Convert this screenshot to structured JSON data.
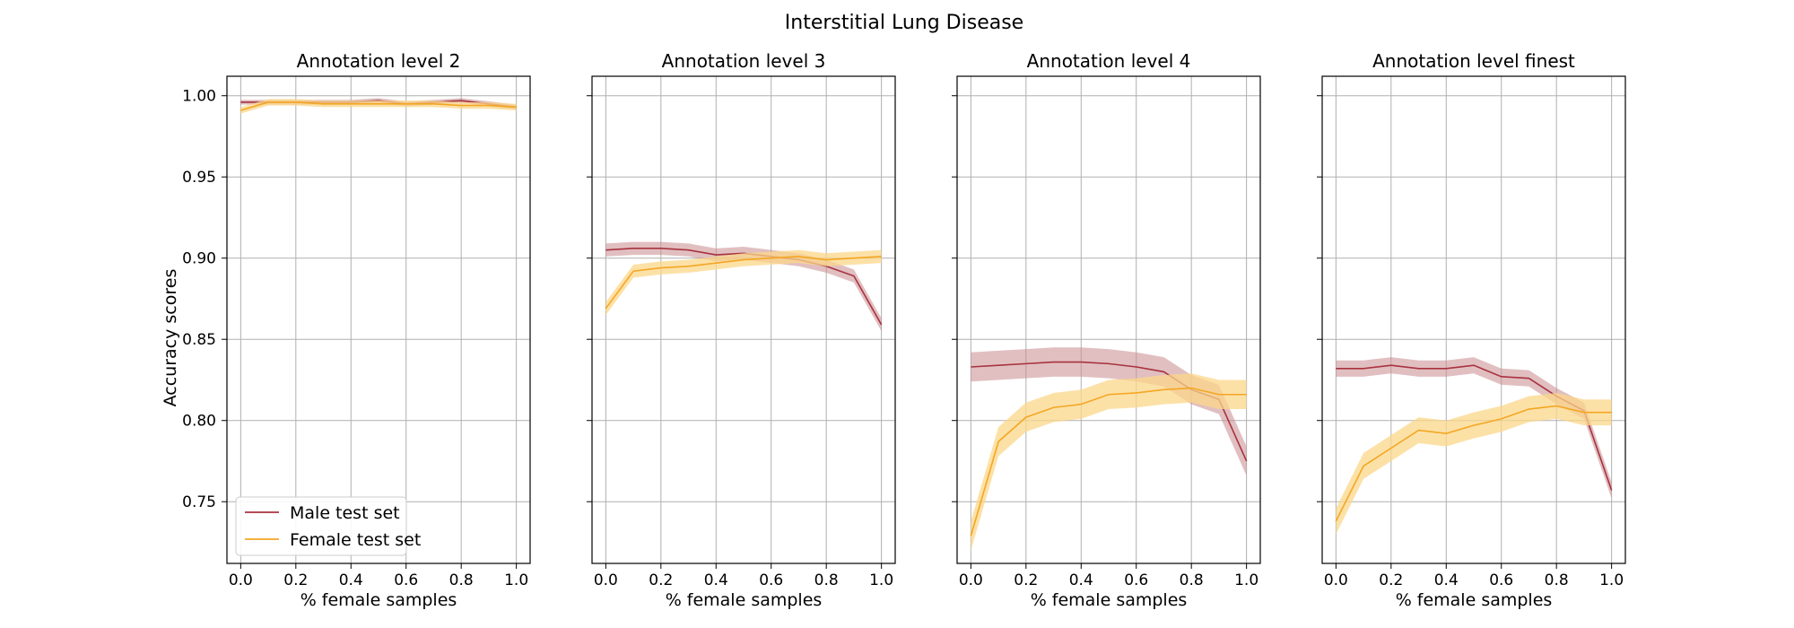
{
  "figure": {
    "title": "Interstitial Lung Disease"
  },
  "legend": {
    "location": "lower-left"
  },
  "colors": {
    "male": "#a8323f",
    "male_band": "#c98a8e",
    "female": "#f5a623",
    "female_band": "#fbd78a",
    "grid": "#b0b0b0"
  },
  "chart_data": [
    {
      "type": "line",
      "title": "Annotation level 2",
      "xlabel": "% female samples",
      "ylabel": "Accuracy scores",
      "x": [
        0.0,
        0.1,
        0.2,
        0.3,
        0.4,
        0.5,
        0.6,
        0.7,
        0.8,
        0.9,
        1.0
      ],
      "xticks": [
        "0.0",
        "0.2",
        "0.4",
        "0.6",
        "0.8",
        "1.0"
      ],
      "yticks": [
        "0.75",
        "0.80",
        "0.85",
        "0.90",
        "0.95",
        "1.00"
      ],
      "xlim": [
        -0.05,
        1.05
      ],
      "ylim": [
        0.712,
        1.012
      ],
      "grid": true,
      "series": [
        {
          "name": "Male test set",
          "values": [
            0.996,
            0.996,
            0.996,
            0.996,
            0.996,
            0.997,
            0.995,
            0.996,
            0.997,
            0.995,
            0.993
          ],
          "band": 0.0015
        },
        {
          "name": "Female test set",
          "values": [
            0.991,
            0.996,
            0.996,
            0.995,
            0.995,
            0.995,
            0.995,
            0.995,
            0.994,
            0.994,
            0.993
          ],
          "band": 0.002
        }
      ]
    },
    {
      "type": "line",
      "title": "Annotation level 3",
      "xlabel": "% female samples",
      "ylabel": "",
      "x": [
        0.0,
        0.1,
        0.2,
        0.3,
        0.4,
        0.5,
        0.6,
        0.7,
        0.8,
        0.9,
        1.0
      ],
      "xticks": [
        "0.0",
        "0.2",
        "0.4",
        "0.6",
        "0.8",
        "1.0"
      ],
      "yticks": [],
      "xlim": [
        -0.05,
        1.05
      ],
      "ylim": [
        0.712,
        1.012
      ],
      "grid": true,
      "series": [
        {
          "name": "Male test set",
          "values": [
            0.905,
            0.906,
            0.906,
            0.905,
            0.902,
            0.903,
            0.901,
            0.899,
            0.895,
            0.889,
            0.859
          ],
          "band": 0.004
        },
        {
          "name": "Female test set",
          "values": [
            0.869,
            0.892,
            0.894,
            0.895,
            0.897,
            0.899,
            0.9,
            0.901,
            0.899,
            0.9,
            0.901
          ],
          "band": 0.004
        }
      ]
    },
    {
      "type": "line",
      "title": "Annotation level 4",
      "xlabel": "% female samples",
      "ylabel": "",
      "x": [
        0.0,
        0.1,
        0.2,
        0.3,
        0.4,
        0.5,
        0.6,
        0.7,
        0.8,
        0.9,
        1.0
      ],
      "xticks": [
        "0.0",
        "0.2",
        "0.4",
        "0.6",
        "0.8",
        "1.0"
      ],
      "yticks": [],
      "xlim": [
        -0.05,
        1.05
      ],
      "ylim": [
        0.712,
        1.012
      ],
      "grid": true,
      "series": [
        {
          "name": "Male test set",
          "values": [
            0.833,
            0.834,
            0.835,
            0.836,
            0.836,
            0.835,
            0.833,
            0.83,
            0.819,
            0.813,
            0.775
          ],
          "band": 0.009
        },
        {
          "name": "Female test set",
          "values": [
            0.729,
            0.787,
            0.802,
            0.808,
            0.81,
            0.816,
            0.817,
            0.819,
            0.82,
            0.816,
            0.816
          ],
          "band": 0.009
        }
      ]
    },
    {
      "type": "line",
      "title": "Annotation level finest",
      "xlabel": "% female samples",
      "ylabel": "",
      "x": [
        0.0,
        0.1,
        0.2,
        0.3,
        0.4,
        0.5,
        0.6,
        0.7,
        0.8,
        0.9,
        1.0
      ],
      "xticks": [
        "0.0",
        "0.2",
        "0.4",
        "0.6",
        "0.8",
        "1.0"
      ],
      "yticks": [],
      "xlim": [
        -0.05,
        1.05
      ],
      "ylim": [
        0.712,
        1.012
      ],
      "grid": true,
      "series": [
        {
          "name": "Male test set",
          "values": [
            0.832,
            0.832,
            0.834,
            0.832,
            0.832,
            0.834,
            0.827,
            0.826,
            0.815,
            0.806,
            0.757
          ],
          "band": 0.005
        },
        {
          "name": "Female test set",
          "values": [
            0.738,
            0.772,
            0.783,
            0.794,
            0.792,
            0.797,
            0.801,
            0.807,
            0.809,
            0.805,
            0.805
          ],
          "band": 0.008
        }
      ]
    }
  ]
}
